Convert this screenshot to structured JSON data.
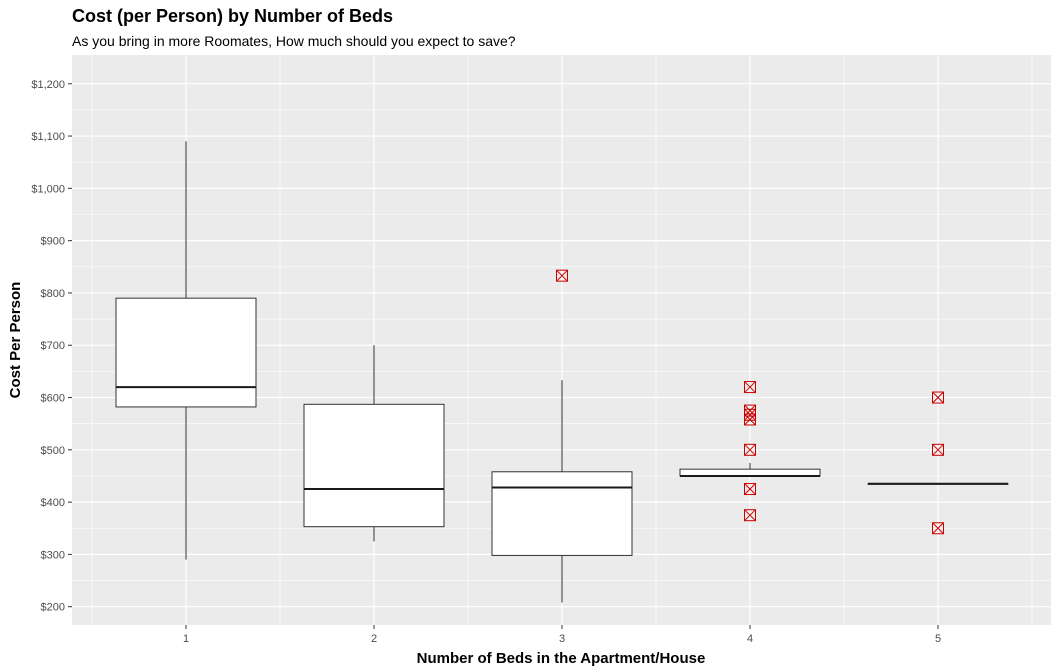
{
  "chart_data": {
    "type": "boxplot",
    "title": "Cost (per Person) by Number of Beds",
    "subtitle": "As you bring in more Roomates, How much should you expect to save?",
    "xlabel": "Number of Beds in the Apartment/House",
    "ylabel": "Cost Per Person",
    "categories": [
      "1",
      "2",
      "3",
      "4",
      "5"
    ],
    "ylim": [
      165,
      1255
    ],
    "y_ticks": [
      200,
      300,
      400,
      500,
      600,
      700,
      800,
      900,
      1000,
      1100,
      1200
    ],
    "y_tick_labels": [
      "$200",
      "$300",
      "$400",
      "$500",
      "$600",
      "$700",
      "$800",
      "$900",
      "$1,000",
      "$1,100",
      "$1,200"
    ],
    "grid": true,
    "panel_color": "#ebebeb",
    "outlier_color": "#cc0000",
    "boxes": [
      {
        "category": "1",
        "lower_whisker": 290,
        "q1": 582,
        "median": 620,
        "q3": 790,
        "upper_whisker": 1090,
        "outliers": []
      },
      {
        "category": "2",
        "lower_whisker": 325,
        "q1": 353,
        "median": 425,
        "q3": 587,
        "upper_whisker": 700,
        "outliers": []
      },
      {
        "category": "3",
        "lower_whisker": 208,
        "q1": 298,
        "median": 428,
        "q3": 458,
        "upper_whisker": 633,
        "outliers": [
          833
        ]
      },
      {
        "category": "4",
        "lower_whisker": 450,
        "q1": 450,
        "median": 450,
        "q3": 463,
        "upper_whisker": 475,
        "outliers": [
          375,
          425,
          500,
          558,
          567,
          575,
          620
        ]
      },
      {
        "category": "5",
        "lower_whisker": 435,
        "q1": 435,
        "median": 435,
        "q3": 435,
        "upper_whisker": 435,
        "outliers": [
          350,
          500,
          600
        ]
      }
    ]
  }
}
